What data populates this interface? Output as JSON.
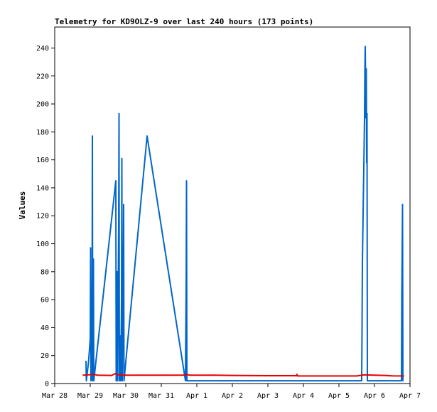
{
  "chart_data": {
    "type": "line",
    "title": "Telemetry for KD9OLZ-9 over last 240 hours (173 points)",
    "xlabel": "",
    "ylabel": "Values",
    "x_ticks": [
      "Mar 28",
      "Mar 29",
      "Mar 30",
      "Mar 31",
      "Apr 1",
      "Apr 2",
      "Apr 3",
      "Apr 4",
      "Apr 5",
      "Apr 6",
      "Apr 7"
    ],
    "xlim": [
      0,
      10
    ],
    "ylim": [
      0,
      255
    ],
    "y_ticks": [
      0,
      20,
      40,
      60,
      80,
      100,
      120,
      140,
      160,
      180,
      200,
      220,
      240
    ],
    "grid": false,
    "series": [
      {
        "color": "#0066cc",
        "points": [
          [
            0.88,
            16
          ],
          [
            0.89,
            2
          ],
          [
            0.95,
            15
          ],
          [
            0.98,
            25
          ],
          [
            1.0,
            32
          ],
          [
            1.01,
            97
          ],
          [
            1.02,
            2
          ],
          [
            1.05,
            5
          ],
          [
            1.06,
            177
          ],
          [
            1.07,
            2
          ],
          [
            1.09,
            89
          ],
          [
            1.1,
            2
          ],
          [
            1.72,
            145
          ],
          [
            1.73,
            2
          ],
          [
            1.76,
            80
          ],
          [
            1.77,
            2
          ],
          [
            1.8,
            113
          ],
          [
            1.81,
            193
          ],
          [
            1.82,
            2
          ],
          [
            1.85,
            34
          ],
          [
            1.86,
            2
          ],
          [
            1.88,
            60
          ],
          [
            1.89,
            161
          ],
          [
            1.9,
            2
          ],
          [
            1.93,
            74
          ],
          [
            1.94,
            128
          ],
          [
            1.95,
            2
          ],
          [
            2.6,
            177
          ],
          [
            3.68,
            2
          ],
          [
            3.7,
            73
          ],
          [
            3.71,
            145
          ],
          [
            3.72,
            2
          ],
          [
            8.64,
            2
          ],
          [
            8.65,
            38
          ],
          [
            8.66,
            86
          ],
          [
            8.68,
            121
          ],
          [
            8.7,
            155
          ],
          [
            8.72,
            190
          ],
          [
            8.73,
            224
          ],
          [
            8.74,
            241
          ],
          [
            8.76,
            190
          ],
          [
            8.77,
            225
          ],
          [
            8.78,
            158
          ],
          [
            8.79,
            193
          ],
          [
            8.8,
            2
          ],
          [
            9.76,
            2
          ],
          [
            9.77,
            65
          ],
          [
            9.79,
            128
          ],
          [
            9.8,
            2
          ]
        ]
      },
      {
        "color": "#e60000",
        "points": [
          [
            0.8,
            6
          ],
          [
            1.1,
            6.5
          ],
          [
            1.2,
            6
          ],
          [
            1.6,
            5.8
          ],
          [
            1.7,
            7
          ],
          [
            1.8,
            6.2
          ],
          [
            1.9,
            6
          ],
          [
            2.5,
            6
          ],
          [
            3.0,
            6
          ],
          [
            3.6,
            6
          ],
          [
            3.75,
            6.3
          ],
          [
            3.8,
            6
          ],
          [
            4.5,
            6
          ],
          [
            5.0,
            5.8
          ],
          [
            6.0,
            5.6
          ],
          [
            6.8,
            5.6
          ],
          [
            6.82,
            6.5
          ],
          [
            6.84,
            5.4
          ],
          [
            7.5,
            5.4
          ],
          [
            8.5,
            5.4
          ],
          [
            8.7,
            6.2
          ],
          [
            9.0,
            6
          ],
          [
            9.3,
            5.8
          ],
          [
            9.5,
            5.5
          ],
          [
            9.82,
            5.4
          ]
        ]
      }
    ]
  }
}
